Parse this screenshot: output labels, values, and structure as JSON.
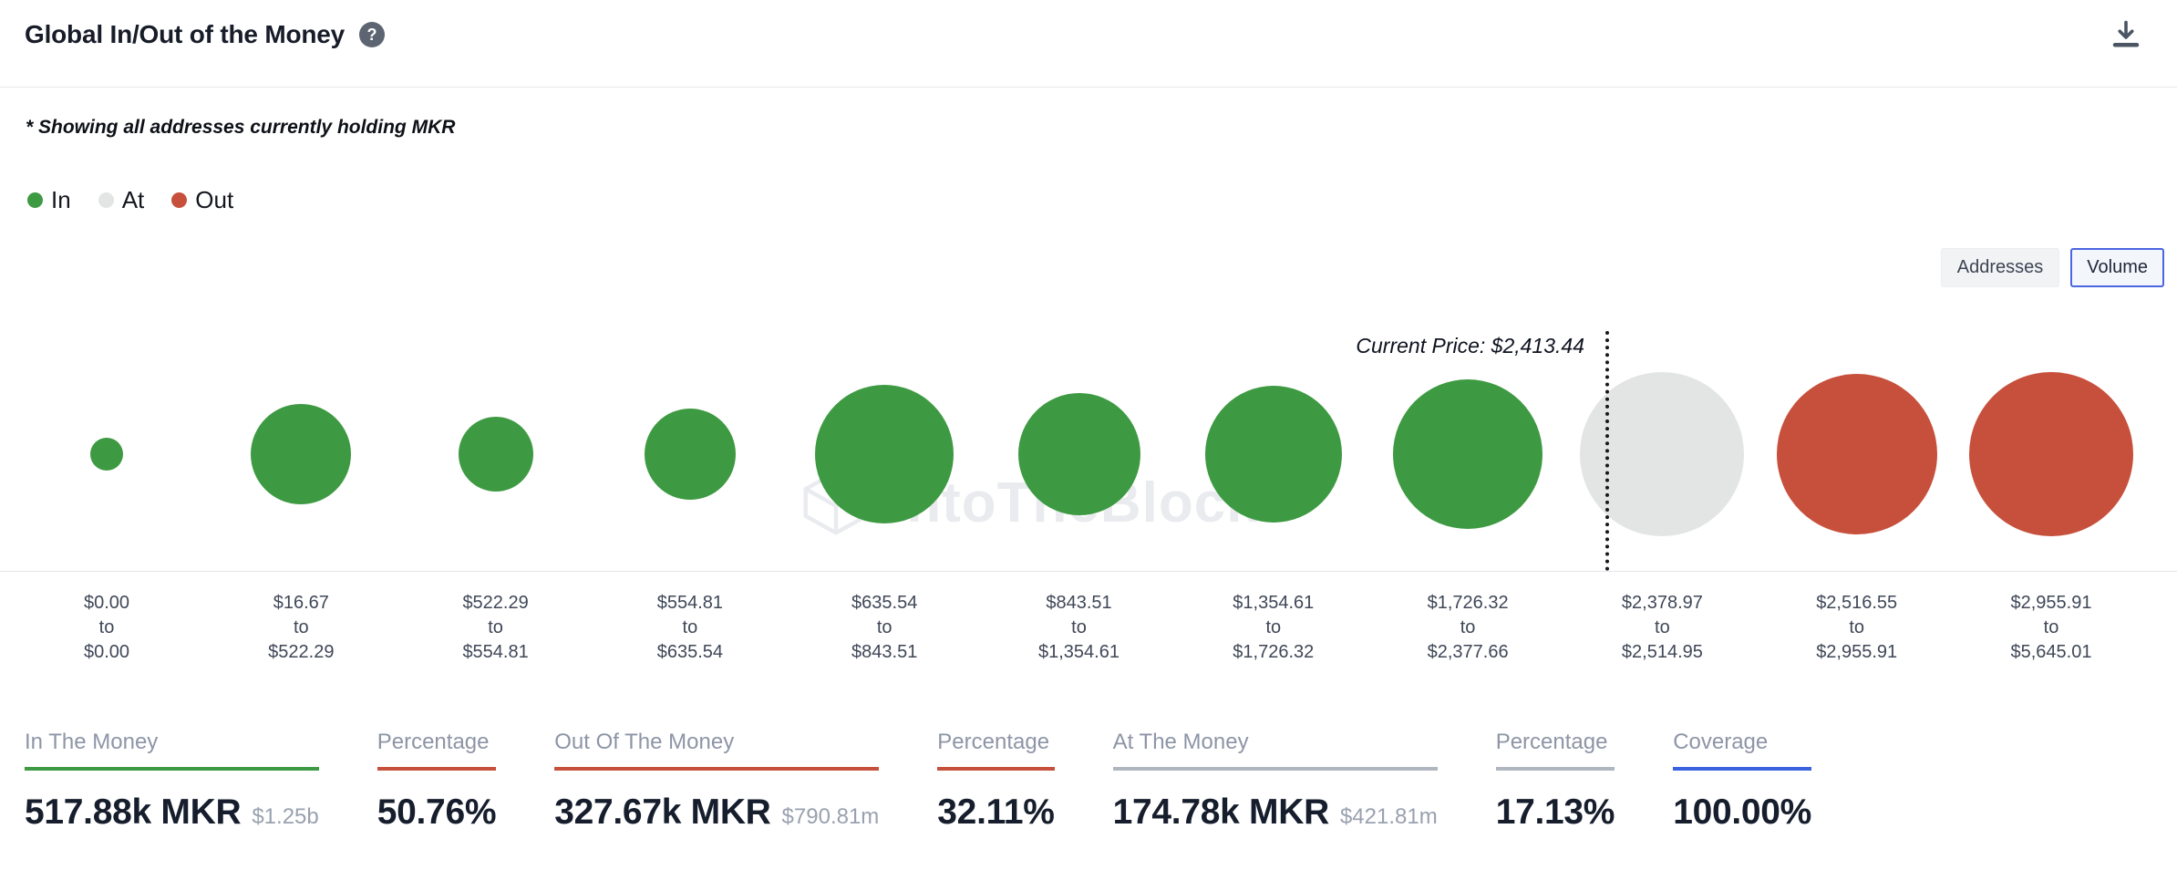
{
  "header": {
    "title": "Global In/Out of the Money",
    "help_glyph": "?"
  },
  "subtitle": "* Showing all addresses currently holding MKR",
  "legend": {
    "items": [
      {
        "label": "In",
        "color": "#3e9a42"
      },
      {
        "label": "At",
        "color": "#e3e5e4"
      },
      {
        "label": "Out",
        "color": "#c7503c"
      }
    ]
  },
  "view_toggle": {
    "options": [
      {
        "label": "Addresses",
        "selected": false
      },
      {
        "label": "Volume",
        "selected": true
      }
    ]
  },
  "watermark": {
    "text": "IntoTheBlock"
  },
  "chart_data": {
    "type": "bubble",
    "title": "Global In/Out of the Money",
    "asset": "MKR",
    "current_price_annotation": "Current Price: $2,413.44",
    "current_price": 2413.44,
    "range_separator": "to",
    "legend": [
      "In",
      "At",
      "Out"
    ],
    "colors": {
      "in": "#3e9a42",
      "at": "#e3e5e4",
      "out": "#c7503c"
    },
    "buckets": [
      {
        "from": "$0.00",
        "to": "$0.00",
        "status": "in",
        "radius_px": 18
      },
      {
        "from": "$16.67",
        "to": "$522.29",
        "status": "in",
        "radius_px": 55
      },
      {
        "from": "$522.29",
        "to": "$554.81",
        "status": "in",
        "radius_px": 41
      },
      {
        "from": "$554.81",
        "to": "$635.54",
        "status": "in",
        "radius_px": 50
      },
      {
        "from": "$635.54",
        "to": "$843.51",
        "status": "in",
        "radius_px": 76
      },
      {
        "from": "$843.51",
        "to": "$1,354.61",
        "status": "in",
        "radius_px": 67
      },
      {
        "from": "$1,354.61",
        "to": "$1,726.32",
        "status": "in",
        "radius_px": 75
      },
      {
        "from": "$1,726.32",
        "to": "$2,377.66",
        "status": "in",
        "radius_px": 82
      },
      {
        "from": "$2,378.97",
        "to": "$2,514.95",
        "status": "at",
        "radius_px": 90
      },
      {
        "from": "$2,516.55",
        "to": "$2,955.91",
        "status": "out",
        "radius_px": 88
      },
      {
        "from": "$2,955.91",
        "to": "$5,645.01",
        "status": "out",
        "radius_px": 90
      }
    ]
  },
  "stats": [
    {
      "key": "in-the-money",
      "label": "In The Money",
      "value": "517.88k MKR",
      "secondary": "$1.25b",
      "underline_color": "#3e9a42"
    },
    {
      "key": "in-the-money-percentage",
      "label": "Percentage",
      "value": "50.76%",
      "secondary": "",
      "underline_color": "#c7503c"
    },
    {
      "key": "out-of-the-money",
      "label": "Out Of The Money",
      "value": "327.67k MKR",
      "secondary": "$790.81m",
      "underline_color": "#c7503c"
    },
    {
      "key": "out-of-the-money-percentage",
      "label": "Percentage",
      "value": "32.11%",
      "secondary": "",
      "underline_color": "#c7503c"
    },
    {
      "key": "at-the-money",
      "label": "At The Money",
      "value": "174.78k MKR",
      "secondary": "$421.81m",
      "underline_color": "#b0b6c0"
    },
    {
      "key": "at-the-money-percentage",
      "label": "Percentage",
      "value": "17.13%",
      "secondary": "",
      "underline_color": "#b0b6c0"
    },
    {
      "key": "coverage",
      "label": "Coverage",
      "value": "100.00%",
      "secondary": "",
      "underline_color": "#3a62e0"
    }
  ]
}
